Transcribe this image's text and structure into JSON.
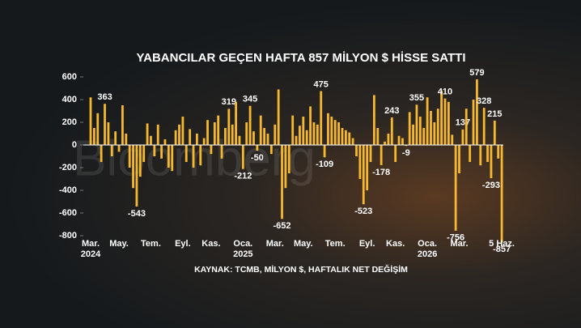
{
  "chart_data": {
    "type": "bar",
    "title": "YABANCILAR GEÇEN HAFTA 857 MİLYON $ HİSSE SATTI",
    "source": "KAYNAK: TCMB, MİLYON $, HAFTALIK NET DEĞİŞİM",
    "watermark": "Bloomberg",
    "color": "#f5b82e",
    "ylim": [
      -800,
      600
    ],
    "yticks": [
      -800,
      -600,
      -400,
      -200,
      0,
      200,
      400,
      600
    ],
    "categories": [
      "Mar. 2024",
      null,
      null,
      null,
      null,
      null,
      null,
      null,
      "May.",
      null,
      null,
      null,
      null,
      null,
      null,
      null,
      null,
      "Tem.",
      null,
      null,
      null,
      null,
      null,
      null,
      null,
      null,
      "Eyl.",
      null,
      null,
      null,
      null,
      null,
      null,
      null,
      "Kas.",
      null,
      null,
      null,
      null,
      null,
      null,
      null,
      null,
      "Oca. 2025",
      null,
      null,
      null,
      null,
      null,
      null,
      null,
      null,
      "Mar.",
      null,
      null,
      null,
      null,
      null,
      null,
      null,
      "May.",
      null,
      null,
      null,
      null,
      null,
      null,
      null,
      null,
      "Tem.",
      null,
      null,
      null,
      null,
      null,
      null,
      null,
      null,
      "Eyl.",
      null,
      null,
      null,
      null,
      null,
      null,
      null,
      "Kas.",
      null,
      null,
      null,
      null,
      null,
      null,
      null,
      null,
      "Oca. 2026",
      null,
      null,
      null,
      null,
      null,
      null,
      null,
      null,
      "Mar.",
      null,
      null,
      null,
      null,
      null,
      null,
      null,
      null,
      null,
      null,
      null,
      "5 Haz."
    ],
    "values": [
      420,
      150,
      280,
      -150,
      363,
      200,
      -100,
      120,
      -60,
      350,
      100,
      -200,
      -380,
      -543,
      -280,
      -150,
      190,
      80,
      -100,
      180,
      -120,
      50,
      -200,
      -230,
      130,
      180,
      250,
      -150,
      140,
      -200,
      100,
      -180,
      60,
      220,
      -80,
      200,
      260,
      -120,
      150,
      319,
      180,
      380,
      80,
      -212,
      200,
      345,
      120,
      -50,
      260,
      150,
      100,
      -80,
      180,
      490,
      -652,
      -380,
      -250,
      260,
      80,
      170,
      250,
      130,
      340,
      200,
      180,
      475,
      -109,
      280,
      250,
      220,
      200,
      150,
      130,
      110,
      60,
      -100,
      -300,
      -523,
      -400,
      -150,
      440,
      150,
      -178,
      30,
      100,
      243,
      -150,
      80,
      60,
      -9,
      290,
      180,
      355,
      250,
      150,
      420,
      300,
      200,
      320,
      480,
      410,
      380,
      90,
      -756,
      -250,
      137,
      320,
      -150,
      400,
      579,
      -180,
      328,
      -150,
      -293,
      215,
      -120,
      -857
    ],
    "value_labels": [
      null,
      null,
      null,
      null,
      "363",
      null,
      null,
      null,
      null,
      null,
      null,
      null,
      null,
      "-543",
      null,
      null,
      null,
      null,
      null,
      null,
      null,
      null,
      null,
      null,
      null,
      null,
      null,
      null,
      null,
      null,
      null,
      null,
      null,
      null,
      null,
      null,
      null,
      null,
      null,
      "319",
      null,
      null,
      null,
      "-212",
      null,
      "345",
      null,
      "-50",
      null,
      null,
      null,
      null,
      null,
      null,
      "-652",
      null,
      null,
      null,
      null,
      null,
      null,
      null,
      null,
      null,
      null,
      "475",
      "-109",
      null,
      null,
      null,
      null,
      null,
      null,
      null,
      null,
      null,
      null,
      "-523",
      null,
      null,
      null,
      null,
      "-178",
      null,
      null,
      "243",
      null,
      null,
      null,
      "-9",
      null,
      null,
      "355",
      null,
      null,
      null,
      null,
      null,
      null,
      null,
      "410",
      null,
      null,
      "-756",
      null,
      "137",
      null,
      null,
      null,
      "579",
      null,
      "328",
      null,
      "-293",
      "215",
      null,
      "-857"
    ]
  }
}
